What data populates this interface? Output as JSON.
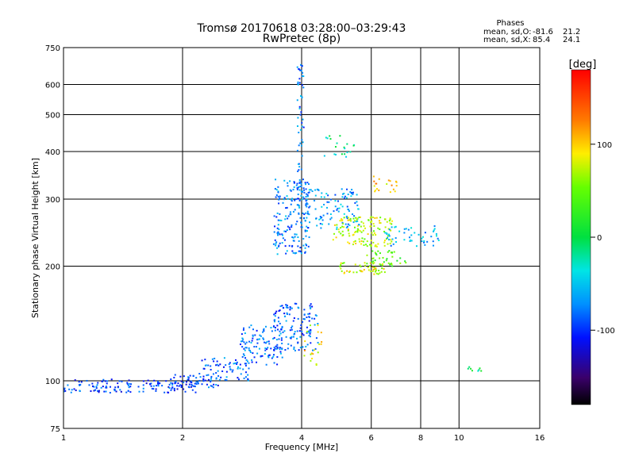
{
  "chart_data": {
    "type": "scatter",
    "title": "Tromsø 20170618 03:28:00–03:29:43",
    "subtitle": "RwPretec (8p)",
    "xlabel": "Frequency [MHz]",
    "ylabel": "Stationary phase Virtual Height [km]",
    "x_scale": "log",
    "y_scale": "log",
    "xlim": [
      1,
      16
    ],
    "ylim": [
      75,
      750
    ],
    "x_ticks": [
      1,
      2,
      4,
      6,
      8,
      10,
      16
    ],
    "y_ticks": [
      75,
      100,
      200,
      300,
      400,
      500,
      600,
      750
    ],
    "grid": true,
    "phases": {
      "title": "Phases",
      "o_label": "mean, sd,O:",
      "o_mean": -81.6,
      "o_sd": 21.2,
      "x_label": "mean, sd,X:",
      "x_mean": 85.4,
      "x_sd": 24.1
    },
    "colorbar": {
      "label": "[deg]",
      "range": [
        -180,
        180
      ],
      "ticks": [
        100,
        0,
        -100
      ]
    },
    "clusters": [
      {
        "fmin": 1.0,
        "fmax": 2.2,
        "hmin": 93,
        "hmax": 101,
        "phase": -95,
        "n": 150
      },
      {
        "fmin": 1.9,
        "fmax": 2.5,
        "hmin": 96,
        "hmax": 104,
        "phase": -90,
        "n": 40
      },
      {
        "fmin": 2.2,
        "fmax": 3.0,
        "hmin": 100,
        "hmax": 115,
        "phase": -85,
        "n": 70
      },
      {
        "fmin": 2.8,
        "fmax": 3.6,
        "hmin": 110,
        "hmax": 140,
        "phase": -80,
        "n": 110
      },
      {
        "fmin": 3.4,
        "fmax": 4.4,
        "hmin": 120,
        "hmax": 160,
        "phase": -85,
        "n": 130
      },
      {
        "fmin": 3.4,
        "fmax": 4.2,
        "hmin": 215,
        "hmax": 340,
        "phase": -75,
        "n": 180
      },
      {
        "fmin": 3.9,
        "fmax": 4.05,
        "hmin": 300,
        "hmax": 680,
        "phase": -80,
        "n": 60
      },
      {
        "fmin": 4.0,
        "fmax": 5.6,
        "hmin": 250,
        "hmax": 320,
        "phase": -65,
        "n": 110
      },
      {
        "fmin": 4.8,
        "fmax": 6.8,
        "hmin": 225,
        "hmax": 270,
        "phase": 75,
        "n": 130
      },
      {
        "fmin": 5.0,
        "fmax": 6.5,
        "hmin": 190,
        "hmax": 205,
        "phase": 80,
        "n": 50
      },
      {
        "fmin": 5.8,
        "fmax": 7.5,
        "hmin": 200,
        "hmax": 220,
        "phase": 40,
        "n": 40
      },
      {
        "fmin": 6.5,
        "fmax": 9.0,
        "hmin": 225,
        "hmax": 255,
        "phase": -60,
        "n": 50
      },
      {
        "fmin": 6.0,
        "fmax": 7.0,
        "hmin": 310,
        "hmax": 345,
        "phase": 100,
        "n": 20
      },
      {
        "fmin": 4.0,
        "fmax": 4.5,
        "hmin": 110,
        "hmax": 140,
        "phase": 90,
        "n": 20
      },
      {
        "fmin": 4.5,
        "fmax": 5.5,
        "hmin": 380,
        "hmax": 440,
        "phase": -20,
        "n": 20
      },
      {
        "fmin": 10.5,
        "fmax": 11.5,
        "hmin": 106,
        "hmax": 109,
        "phase": -5,
        "n": 8
      }
    ]
  }
}
